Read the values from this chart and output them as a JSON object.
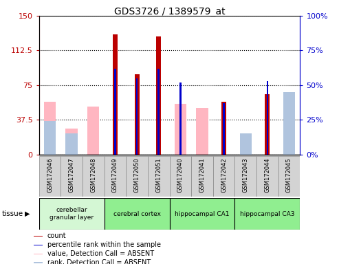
{
  "title": "GDS3726 / 1389579_at",
  "samples": [
    "GSM172046",
    "GSM172047",
    "GSM172048",
    "GSM172049",
    "GSM172050",
    "GSM172051",
    "GSM172040",
    "GSM172041",
    "GSM172042",
    "GSM172043",
    "GSM172044",
    "GSM172045"
  ],
  "count": [
    0,
    0,
    0,
    130,
    87,
    128,
    0,
    0,
    57,
    0,
    65,
    0
  ],
  "percentile_rank": [
    0,
    0,
    0,
    62,
    55,
    62,
    52,
    0,
    37,
    0,
    53,
    0
  ],
  "value_absent": [
    57,
    28,
    52,
    0,
    0,
    0,
    55,
    50,
    0,
    0,
    0,
    65
  ],
  "rank_absent": [
    24,
    15,
    0,
    0,
    0,
    0,
    0,
    0,
    0,
    15,
    0,
    45
  ],
  "tissues": [
    {
      "label": "cerebellar\ngranular layer",
      "start": 0,
      "end": 3,
      "color": "#d4f7d4"
    },
    {
      "label": "cerebral cortex",
      "start": 3,
      "end": 6,
      "color": "#90EE90"
    },
    {
      "label": "hippocampal CA1",
      "start": 6,
      "end": 9,
      "color": "#90EE90"
    },
    {
      "label": "hippocampal CA3",
      "start": 9,
      "end": 12,
      "color": "#90EE90"
    }
  ],
  "left_ylim": [
    0,
    150
  ],
  "right_ylim": [
    0,
    100
  ],
  "left_yticks": [
    0,
    37.5,
    75,
    112.5,
    150
  ],
  "right_yticks": [
    0,
    25,
    50,
    75,
    100
  ],
  "count_color": "#BB0000",
  "rank_color": "#0000CC",
  "absent_value_color": "#FFB6C1",
  "absent_rank_color": "#B0C4DE",
  "ylabel_left_color": "#BB0000",
  "ylabel_right_color": "#0000CC"
}
